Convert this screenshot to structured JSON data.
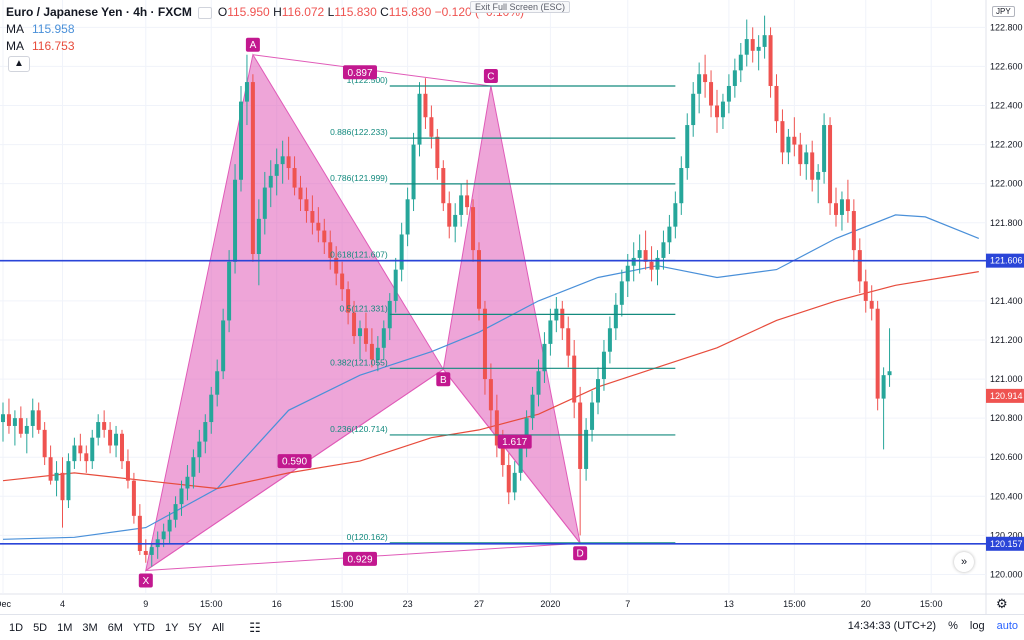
{
  "header": {
    "symbol": "Euro / Japanese Yen",
    "interval": "4h",
    "exchange": "FXCM",
    "o_label": "O",
    "o": "115.950",
    "h_label": "H",
    "h": "116.072",
    "l_label": "L",
    "l": "115.830",
    "c_label": "C",
    "c": "115.830",
    "change": "−0.120 (−0.10%)",
    "ma1_label": "MA",
    "ma1_value": "115.958",
    "ma2_label": "MA",
    "ma2_value": "116.753",
    "collapse_icon": "chevron-up-icon",
    "exit_fullscreen": "Exit Full Screen (ESC)"
  },
  "currency_badge": "JPY",
  "bottom_bar": {
    "ranges": [
      "1D",
      "5D",
      "1M",
      "3M",
      "6M",
      "YTD",
      "1Y",
      "5Y",
      "All"
    ],
    "time": "14:34:33 (UTC+2)",
    "percent": "%",
    "log": "log",
    "auto": "auto"
  },
  "colors": {
    "up": "#26a69a",
    "down": "#ef5350",
    "pattern_fill": "#e05bb8",
    "pattern_label": "#c2188f",
    "fib": "#138a7e",
    "hline": "#2a45d8",
    "ma_fast": "#4a90d9",
    "ma_slow": "#e74c3c"
  },
  "chart_data": {
    "type": "candlestick",
    "y_ticks": [
      "122.800",
      "122.600",
      "122.400",
      "122.200",
      "122.000",
      "121.800",
      "121.400",
      "121.200",
      "121.000",
      "120.800",
      "120.600",
      "120.400",
      "120.200",
      "120.000"
    ],
    "ylim": [
      119.9,
      122.94
    ],
    "x_ticks": [
      {
        "label": "Dec",
        "i": 0
      },
      {
        "label": "4",
        "i": 10
      },
      {
        "label": "9",
        "i": 24
      },
      {
        "label": "15:00",
        "i": 35
      },
      {
        "label": "16",
        "i": 46
      },
      {
        "label": "15:00",
        "i": 57
      },
      {
        "label": "23",
        "i": 68
      },
      {
        "label": "27",
        "i": 80
      },
      {
        "label": "2020",
        "i": 92
      },
      {
        "label": "7",
        "i": 105
      },
      {
        "label": "13",
        "i": 122
      },
      {
        "label": "15:00",
        "i": 133
      },
      {
        "label": "20",
        "i": 145
      },
      {
        "label": "15:00",
        "i": 156
      }
    ],
    "candles": [
      [
        120.78,
        120.88,
        120.68,
        120.82
      ],
      [
        120.82,
        120.9,
        120.72,
        120.76
      ],
      [
        120.76,
        120.84,
        120.66,
        120.8
      ],
      [
        120.8,
        120.86,
        120.7,
        120.72
      ],
      [
        120.72,
        120.8,
        120.62,
        120.76
      ],
      [
        120.76,
        120.9,
        120.7,
        120.84
      ],
      [
        120.84,
        120.88,
        120.72,
        120.74
      ],
      [
        120.74,
        120.78,
        120.56,
        120.6
      ],
      [
        120.6,
        120.66,
        120.46,
        120.48
      ],
      [
        120.48,
        120.58,
        120.4,
        120.52
      ],
      [
        120.52,
        120.6,
        120.24,
        120.38
      ],
      [
        120.38,
        120.62,
        120.34,
        120.58
      ],
      [
        120.58,
        120.7,
        120.54,
        120.66
      ],
      [
        120.66,
        120.72,
        120.58,
        120.62
      ],
      [
        120.62,
        120.66,
        120.52,
        120.58
      ],
      [
        120.58,
        120.74,
        120.54,
        120.7
      ],
      [
        120.7,
        120.82,
        120.66,
        120.78
      ],
      [
        120.78,
        120.84,
        120.7,
        120.74
      ],
      [
        120.74,
        120.78,
        120.62,
        120.66
      ],
      [
        120.66,
        120.76,
        120.6,
        120.72
      ],
      [
        120.72,
        120.74,
        120.54,
        120.58
      ],
      [
        120.58,
        120.64,
        120.44,
        120.48
      ],
      [
        120.48,
        120.52,
        120.26,
        120.3
      ],
      [
        120.3,
        120.36,
        120.1,
        120.12
      ],
      [
        120.12,
        120.18,
        120.06,
        120.1
      ],
      [
        120.1,
        120.16,
        120.04,
        120.14
      ],
      [
        120.14,
        120.22,
        120.08,
        120.18
      ],
      [
        120.18,
        120.26,
        120.14,
        120.22
      ],
      [
        120.22,
        120.32,
        120.16,
        120.28
      ],
      [
        120.28,
        120.4,
        120.24,
        120.36
      ],
      [
        120.36,
        120.48,
        120.3,
        120.44
      ],
      [
        120.44,
        120.56,
        120.38,
        120.5
      ],
      [
        120.5,
        120.64,
        120.44,
        120.6
      ],
      [
        120.6,
        120.74,
        120.52,
        120.68
      ],
      [
        120.68,
        120.82,
        120.62,
        120.78
      ],
      [
        120.78,
        120.96,
        120.72,
        120.92
      ],
      [
        120.92,
        121.1,
        120.86,
        121.04
      ],
      [
        121.04,
        121.36,
        121.0,
        121.3
      ],
      [
        121.3,
        121.66,
        121.24,
        121.6
      ],
      [
        121.6,
        122.1,
        121.54,
        122.02
      ],
      [
        122.02,
        122.5,
        121.96,
        122.42
      ],
      [
        122.42,
        122.66,
        122.3,
        122.52
      ],
      [
        122.52,
        122.56,
        121.6,
        121.64
      ],
      [
        121.64,
        121.92,
        121.48,
        121.82
      ],
      [
        121.82,
        122.06,
        121.74,
        121.98
      ],
      [
        121.98,
        122.12,
        121.88,
        122.04
      ],
      [
        122.04,
        122.18,
        121.94,
        122.1
      ],
      [
        122.1,
        122.22,
        122.0,
        122.14
      ],
      [
        122.14,
        122.24,
        122.02,
        122.08
      ],
      [
        122.08,
        122.14,
        121.94,
        121.98
      ],
      [
        121.98,
        122.04,
        121.86,
        121.92
      ],
      [
        121.92,
        121.98,
        121.8,
        121.86
      ],
      [
        121.86,
        121.94,
        121.74,
        121.8
      ],
      [
        121.8,
        121.88,
        121.7,
        121.76
      ],
      [
        121.76,
        121.82,
        121.64,
        121.7
      ],
      [
        121.7,
        121.76,
        121.56,
        121.62
      ],
      [
        121.62,
        121.68,
        121.48,
        121.54
      ],
      [
        121.54,
        121.6,
        121.4,
        121.46
      ],
      [
        121.46,
        121.5,
        121.28,
        121.34
      ],
      [
        121.34,
        121.4,
        121.18,
        121.22
      ],
      [
        121.22,
        121.3,
        121.1,
        121.26
      ],
      [
        121.26,
        121.34,
        121.14,
        121.18
      ],
      [
        121.18,
        121.26,
        121.06,
        121.1
      ],
      [
        121.1,
        121.22,
        121.04,
        121.16
      ],
      [
        121.16,
        121.3,
        121.1,
        121.26
      ],
      [
        121.26,
        121.44,
        121.2,
        121.4
      ],
      [
        121.4,
        121.62,
        121.34,
        121.56
      ],
      [
        121.56,
        121.8,
        121.5,
        121.74
      ],
      [
        121.74,
        121.98,
        121.68,
        121.92
      ],
      [
        121.92,
        122.26,
        121.86,
        122.2
      ],
      [
        122.2,
        122.52,
        122.14,
        122.46
      ],
      [
        122.46,
        122.54,
        122.28,
        122.34
      ],
      [
        122.34,
        122.4,
        122.18,
        122.24
      ],
      [
        122.24,
        122.28,
        122.02,
        122.08
      ],
      [
        122.08,
        122.12,
        121.86,
        121.9
      ],
      [
        121.9,
        121.96,
        121.72,
        121.78
      ],
      [
        121.78,
        121.9,
        121.7,
        121.84
      ],
      [
        121.84,
        122.0,
        121.78,
        121.94
      ],
      [
        121.94,
        122.02,
        121.84,
        121.88
      ],
      [
        121.88,
        121.92,
        121.6,
        121.66
      ],
      [
        121.66,
        121.7,
        121.3,
        121.36
      ],
      [
        121.36,
        121.4,
        120.92,
        121.0
      ],
      [
        121.0,
        121.08,
        120.74,
        120.84
      ],
      [
        120.84,
        120.92,
        120.6,
        120.66
      ],
      [
        120.66,
        120.74,
        120.5,
        120.56
      ],
      [
        120.56,
        120.62,
        120.36,
        120.42
      ],
      [
        120.42,
        120.58,
        120.38,
        120.52
      ],
      [
        120.52,
        120.7,
        120.48,
        120.66
      ],
      [
        120.66,
        120.84,
        120.6,
        120.8
      ],
      [
        120.8,
        120.96,
        120.74,
        120.92
      ],
      [
        120.92,
        121.1,
        120.86,
        121.04
      ],
      [
        121.04,
        121.24,
        120.98,
        121.18
      ],
      [
        121.18,
        121.36,
        121.12,
        121.3
      ],
      [
        121.3,
        121.42,
        121.24,
        121.36
      ],
      [
        121.36,
        121.4,
        121.2,
        121.26
      ],
      [
        121.26,
        121.32,
        121.06,
        121.12
      ],
      [
        121.12,
        121.2,
        120.8,
        120.88
      ],
      [
        120.88,
        120.96,
        120.2,
        120.54
      ],
      [
        120.54,
        120.8,
        120.48,
        120.74
      ],
      [
        120.74,
        120.94,
        120.68,
        120.88
      ],
      [
        120.88,
        121.06,
        120.82,
        121.0
      ],
      [
        121.0,
        121.2,
        120.94,
        121.14
      ],
      [
        121.14,
        121.32,
        121.08,
        121.26
      ],
      [
        121.26,
        121.44,
        121.2,
        121.38
      ],
      [
        121.38,
        121.56,
        121.32,
        121.5
      ],
      [
        121.5,
        121.64,
        121.42,
        121.58
      ],
      [
        121.58,
        121.7,
        121.5,
        121.62
      ],
      [
        121.62,
        121.74,
        121.54,
        121.66
      ],
      [
        121.66,
        121.76,
        121.56,
        121.6
      ],
      [
        121.6,
        121.68,
        121.5,
        121.56
      ],
      [
        121.56,
        121.66,
        121.48,
        121.62
      ],
      [
        121.62,
        121.76,
        121.56,
        121.7
      ],
      [
        121.7,
        121.84,
        121.64,
        121.78
      ],
      [
        121.78,
        121.96,
        121.72,
        121.9
      ],
      [
        121.9,
        122.14,
        121.84,
        122.08
      ],
      [
        122.08,
        122.36,
        122.02,
        122.3
      ],
      [
        122.3,
        122.52,
        122.24,
        122.46
      ],
      [
        122.46,
        122.62,
        122.36,
        122.56
      ],
      [
        122.56,
        122.66,
        122.44,
        122.52
      ],
      [
        122.52,
        122.58,
        122.34,
        122.4
      ],
      [
        122.4,
        122.48,
        122.26,
        122.34
      ],
      [
        122.34,
        122.46,
        122.28,
        122.42
      ],
      [
        122.42,
        122.56,
        122.36,
        122.5
      ],
      [
        122.5,
        122.64,
        122.44,
        122.58
      ],
      [
        122.58,
        122.72,
        122.52,
        122.66
      ],
      [
        122.66,
        122.84,
        122.6,
        122.74
      ],
      [
        122.74,
        122.8,
        122.62,
        122.68
      ],
      [
        122.68,
        122.76,
        122.58,
        122.7
      ],
      [
        122.7,
        122.86,
        122.64,
        122.76
      ],
      [
        122.76,
        122.8,
        122.44,
        122.5
      ],
      [
        122.5,
        122.56,
        122.26,
        122.32
      ],
      [
        122.32,
        122.38,
        122.1,
        122.16
      ],
      [
        122.16,
        122.28,
        122.1,
        122.24
      ],
      [
        122.24,
        122.34,
        122.14,
        122.2
      ],
      [
        122.2,
        122.26,
        122.04,
        122.1
      ],
      [
        122.1,
        122.2,
        122.02,
        122.16
      ],
      [
        122.16,
        122.22,
        121.96,
        122.02
      ],
      [
        122.02,
        122.1,
        121.9,
        122.06
      ],
      [
        122.06,
        122.36,
        122.0,
        122.3
      ],
      [
        122.3,
        122.34,
        121.84,
        121.9
      ],
      [
        121.9,
        121.98,
        121.78,
        121.84
      ],
      [
        121.84,
        121.96,
        121.76,
        121.92
      ],
      [
        121.92,
        122.02,
        121.8,
        121.86
      ],
      [
        121.86,
        121.92,
        121.6,
        121.66
      ],
      [
        121.66,
        121.72,
        121.44,
        121.5
      ],
      [
        121.5,
        121.56,
        121.34,
        121.4
      ],
      [
        121.4,
        121.48,
        121.3,
        121.36
      ],
      [
        121.36,
        121.4,
        120.84,
        120.9
      ],
      [
        120.9,
        121.06,
        120.64,
        121.02
      ],
      [
        121.02,
        121.26,
        120.96,
        121.04
      ]
    ],
    "moving_averages": [
      {
        "name": "MA",
        "value": "115.958",
        "points": [
          [
            0,
            120.18
          ],
          [
            12,
            120.19
          ],
          [
            24,
            120.24
          ],
          [
            36,
            120.44
          ],
          [
            48,
            120.84
          ],
          [
            60,
            121.02
          ],
          [
            72,
            121.14
          ],
          [
            80,
            121.24
          ],
          [
            90,
            121.4
          ],
          [
            100,
            121.52
          ],
          [
            110,
            121.58
          ],
          [
            120,
            121.52
          ],
          [
            130,
            121.56
          ],
          [
            140,
            121.72
          ],
          [
            150,
            121.84
          ],
          [
            155,
            121.83
          ],
          [
            164,
            121.72
          ]
        ]
      },
      {
        "name": "MA",
        "value": "116.753",
        "points": [
          [
            0,
            120.48
          ],
          [
            12,
            120.52
          ],
          [
            24,
            120.48
          ],
          [
            36,
            120.44
          ],
          [
            48,
            120.52
          ],
          [
            60,
            120.58
          ],
          [
            72,
            120.7
          ],
          [
            80,
            120.74
          ],
          [
            90,
            120.82
          ],
          [
            100,
            120.96
          ],
          [
            110,
            121.06
          ],
          [
            120,
            121.16
          ],
          [
            130,
            121.3
          ],
          [
            140,
            121.4
          ],
          [
            150,
            121.48
          ],
          [
            164,
            121.55
          ]
        ]
      }
    ],
    "harmonic": {
      "points": [
        {
          "label": "X",
          "i": 24,
          "y": 120.02
        },
        {
          "label": "A",
          "i": 42,
          "y": 122.66
        },
        {
          "label": "B",
          "i": 74,
          "y": 121.05
        },
        {
          "label": "C",
          "i": 82,
          "y": 122.5
        },
        {
          "label": "D",
          "i": 97,
          "y": 120.16
        }
      ],
      "ratios": [
        {
          "label": "0.897",
          "i": 60,
          "y": 122.57
        },
        {
          "label": "0.590",
          "i": 49,
          "y": 120.58
        },
        {
          "label": "1.617",
          "i": 86,
          "y": 120.68
        },
        {
          "label": "0.929",
          "i": 60,
          "y": 120.08
        }
      ]
    },
    "fibonacci": {
      "i_start": 65,
      "i_end": 113,
      "levels": [
        {
          "label": "1(122.500)",
          "value": 122.5
        },
        {
          "label": "0.886(122.233)",
          "value": 122.233
        },
        {
          "label": "0.786(121.999)",
          "value": 121.999
        },
        {
          "label": "0.618(121.607)",
          "value": 121.607
        },
        {
          "label": "0.5(121.331)",
          "value": 121.331
        },
        {
          "label": "0.382(121.055)",
          "value": 121.055
        },
        {
          "label": "0.236(120.714)",
          "value": 120.714
        },
        {
          "label": "0(120.162)",
          "value": 120.162
        }
      ]
    },
    "horizontal_lines": [
      {
        "value": 121.606,
        "label": "121.606"
      },
      {
        "value": 120.157,
        "label": "120.157"
      }
    ],
    "price_labels": [
      {
        "value": 120.914,
        "label": "120.914",
        "color": "#ef5350"
      }
    ]
  }
}
